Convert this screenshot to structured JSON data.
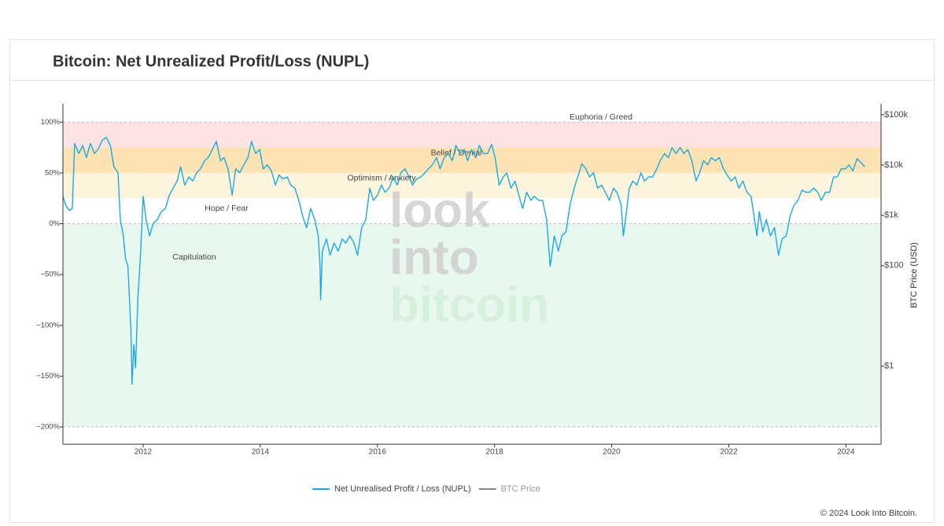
{
  "chart_data": {
    "type": "line",
    "title": "Bitcoin: Net Unrealized Profit/Loss (NUPL)",
    "y2_label": "BTC Price (USD)",
    "copyright": "© 2024 Look Into Bitcoin.",
    "watermark": [
      "look",
      "into",
      "bitcoin"
    ],
    "xlim": [
      2010.63,
      2024.6
    ],
    "xticks": [
      2012,
      2014,
      2016,
      2018,
      2020,
      2022,
      2024
    ],
    "ylim": [
      -217,
      118
    ],
    "yticks": [
      {
        "value": 100,
        "label": "100%"
      },
      {
        "value": 50,
        "label": "50%"
      },
      {
        "value": 0,
        "label": "0%"
      },
      {
        "value": -50,
        "label": "−50%"
      },
      {
        "value": -100,
        "label": "−100%"
      },
      {
        "value": -150,
        "label": "−150%"
      },
      {
        "value": -200,
        "label": "−200%"
      }
    ],
    "y2log": true,
    "y2lim": [
      0.028,
      165000
    ],
    "y2ticks": [
      {
        "value": 100000,
        "label": "$100k"
      },
      {
        "value": 10000,
        "label": "$10k"
      },
      {
        "value": 1000,
        "label": "$1k"
      },
      {
        "value": 100,
        "label": "$100"
      },
      {
        "value": 1,
        "label": "$1"
      }
    ],
    "grid": false,
    "legend": "bottom",
    "zones": [
      {
        "label": "Euphoria / Greed",
        "from": 75,
        "to": 100,
        "color": "#fde3e3"
      },
      {
        "label": "Belief / Denial",
        "from": 50,
        "to": 75,
        "color": "#fde2b3"
      },
      {
        "label": "Optimism / Anxiety",
        "from": 25,
        "to": 50,
        "color": "#fdf4de"
      },
      {
        "label": "Hope / Fear",
        "from": 0,
        "to": 25,
        "color": "#ffffff"
      },
      {
        "label": "Capitulation",
        "from": -200,
        "to": 0,
        "color": "#e9f8ef"
      }
    ],
    "x": [
      2010.63,
      2010.68,
      2010.74,
      2010.79,
      2010.83,
      2010.9,
      2010.97,
      2011.03,
      2011.1,
      2011.17,
      2011.23,
      2011.3,
      2011.37,
      2011.44,
      2011.5,
      2011.57,
      2011.61,
      2011.66,
      2011.7,
      2011.74,
      2011.79,
      2011.81,
      2011.84,
      2011.87,
      2011.91,
      2011.95,
      2012.0,
      2012.05,
      2012.11,
      2012.17,
      2012.24,
      2012.31,
      2012.38,
      2012.44,
      2012.51,
      2012.58,
      2012.64,
      2012.71,
      2012.78,
      2012.85,
      2012.91,
      2012.98,
      2013.05,
      2013.11,
      2013.18,
      2013.25,
      2013.32,
      2013.38,
      2013.45,
      2013.52,
      2013.58,
      2013.65,
      2013.72,
      2013.79,
      2013.85,
      2013.92,
      2013.99,
      2014.05,
      2014.12,
      2014.19,
      2014.26,
      2014.32,
      2014.39,
      2014.46,
      2014.52,
      2014.59,
      2014.66,
      2014.72,
      2014.79,
      2014.86,
      2014.93,
      2014.99,
      2015.02,
      2015.03,
      2015.06,
      2015.13,
      2015.19,
      2015.26,
      2015.33,
      2015.4,
      2015.46,
      2015.53,
      2015.6,
      2015.66,
      2015.73,
      2015.8,
      2015.87,
      2015.93,
      2016.0,
      2016.07,
      2016.13,
      2016.2,
      2016.27,
      2016.34,
      2016.4,
      2016.47,
      2016.54,
      2016.6,
      2016.67,
      2016.74,
      2016.81,
      2016.87,
      2016.94,
      2017.01,
      2017.07,
      2017.14,
      2017.21,
      2017.28,
      2017.34,
      2017.41,
      2017.48,
      2017.54,
      2017.61,
      2017.68,
      2017.74,
      2017.81,
      2017.88,
      2017.95,
      2018.01,
      2018.08,
      2018.15,
      2018.21,
      2018.28,
      2018.35,
      2018.42,
      2018.48,
      2018.55,
      2018.62,
      2018.68,
      2018.75,
      2018.82,
      2018.89,
      2018.93,
      2018.95,
      2019.02,
      2019.09,
      2019.15,
      2019.22,
      2019.29,
      2019.36,
      2019.42,
      2019.49,
      2019.56,
      2019.62,
      2019.69,
      2019.76,
      2019.83,
      2019.89,
      2019.96,
      2020.03,
      2020.09,
      2020.16,
      2020.2,
      2020.26,
      2020.3,
      2020.36,
      2020.43,
      2020.5,
      2020.56,
      2020.63,
      2020.7,
      2020.77,
      2020.83,
      2020.9,
      2020.97,
      2021.03,
      2021.1,
      2021.17,
      2021.23,
      2021.3,
      2021.37,
      2021.44,
      2021.5,
      2021.57,
      2021.64,
      2021.7,
      2021.77,
      2021.84,
      2021.91,
      2021.97,
      2022.04,
      2022.11,
      2022.17,
      2022.24,
      2022.31,
      2022.38,
      2022.44,
      2022.48,
      2022.52,
      2022.58,
      2022.64,
      2022.71,
      2022.78,
      2022.85,
      2022.91,
      2022.98,
      2023.05,
      2023.11,
      2023.18,
      2023.25,
      2023.32,
      2023.38,
      2023.45,
      2023.52,
      2023.58,
      2023.65,
      2023.72,
      2023.79,
      2023.85,
      2023.92,
      2023.99,
      2024.05,
      2024.12,
      2024.19,
      2024.26,
      2024.32
    ],
    "series": [
      {
        "name": "Net Unrealised Profit / Loss (NUPL)",
        "color": "#1ba9e1",
        "values": [
          27,
          18,
          13,
          15,
          79,
          69,
          77,
          65,
          79,
          69,
          73,
          82,
          85,
          77,
          56,
          50,
          4,
          -12,
          -35,
          -42,
          -104,
          -158,
          -119,
          -142,
          -73,
          -35,
          27,
          4,
          -12,
          0,
          4,
          12,
          15,
          27,
          35,
          42,
          56,
          38,
          46,
          42,
          50,
          54,
          62,
          65,
          73,
          81,
          62,
          65,
          54,
          28,
          54,
          50,
          58,
          65,
          81,
          69,
          73,
          54,
          58,
          52,
          38,
          48,
          44,
          46,
          38,
          35,
          23,
          8,
          -4,
          15,
          4,
          -12,
          -42,
          -75,
          -27,
          -15,
          -31,
          -19,
          -27,
          -15,
          -19,
          -12,
          -19,
          -31,
          -4,
          4,
          35,
          23,
          28,
          38,
          31,
          35,
          46,
          38,
          50,
          54,
          46,
          38,
          44,
          46,
          50,
          54,
          58,
          65,
          54,
          65,
          69,
          62,
          77,
          69,
          73,
          62,
          73,
          65,
          77,
          69,
          69,
          78,
          65,
          38,
          46,
          50,
          35,
          42,
          27,
          15,
          31,
          23,
          27,
          23,
          23,
          4,
          -27,
          -42,
          -12,
          -27,
          -12,
          -8,
          19,
          35,
          46,
          59,
          54,
          46,
          50,
          35,
          38,
          31,
          23,
          35,
          31,
          19,
          -12,
          15,
          35,
          42,
          38,
          50,
          42,
          46,
          46,
          54,
          62,
          69,
          65,
          75,
          69,
          75,
          69,
          73,
          62,
          42,
          50,
          62,
          58,
          65,
          62,
          65,
          54,
          48,
          42,
          46,
          35,
          42,
          31,
          27,
          4,
          -12,
          12,
          -8,
          4,
          -12,
          -4,
          -31,
          -15,
          -12,
          8,
          18,
          23,
          33,
          31,
          31,
          35,
          31,
          23,
          31,
          31,
          46,
          46,
          54,
          54,
          58,
          52,
          64,
          60,
          56
        ]
      },
      {
        "name": "BTC Price",
        "color": "#888888",
        "axis": "y2",
        "visible": false
      }
    ]
  }
}
